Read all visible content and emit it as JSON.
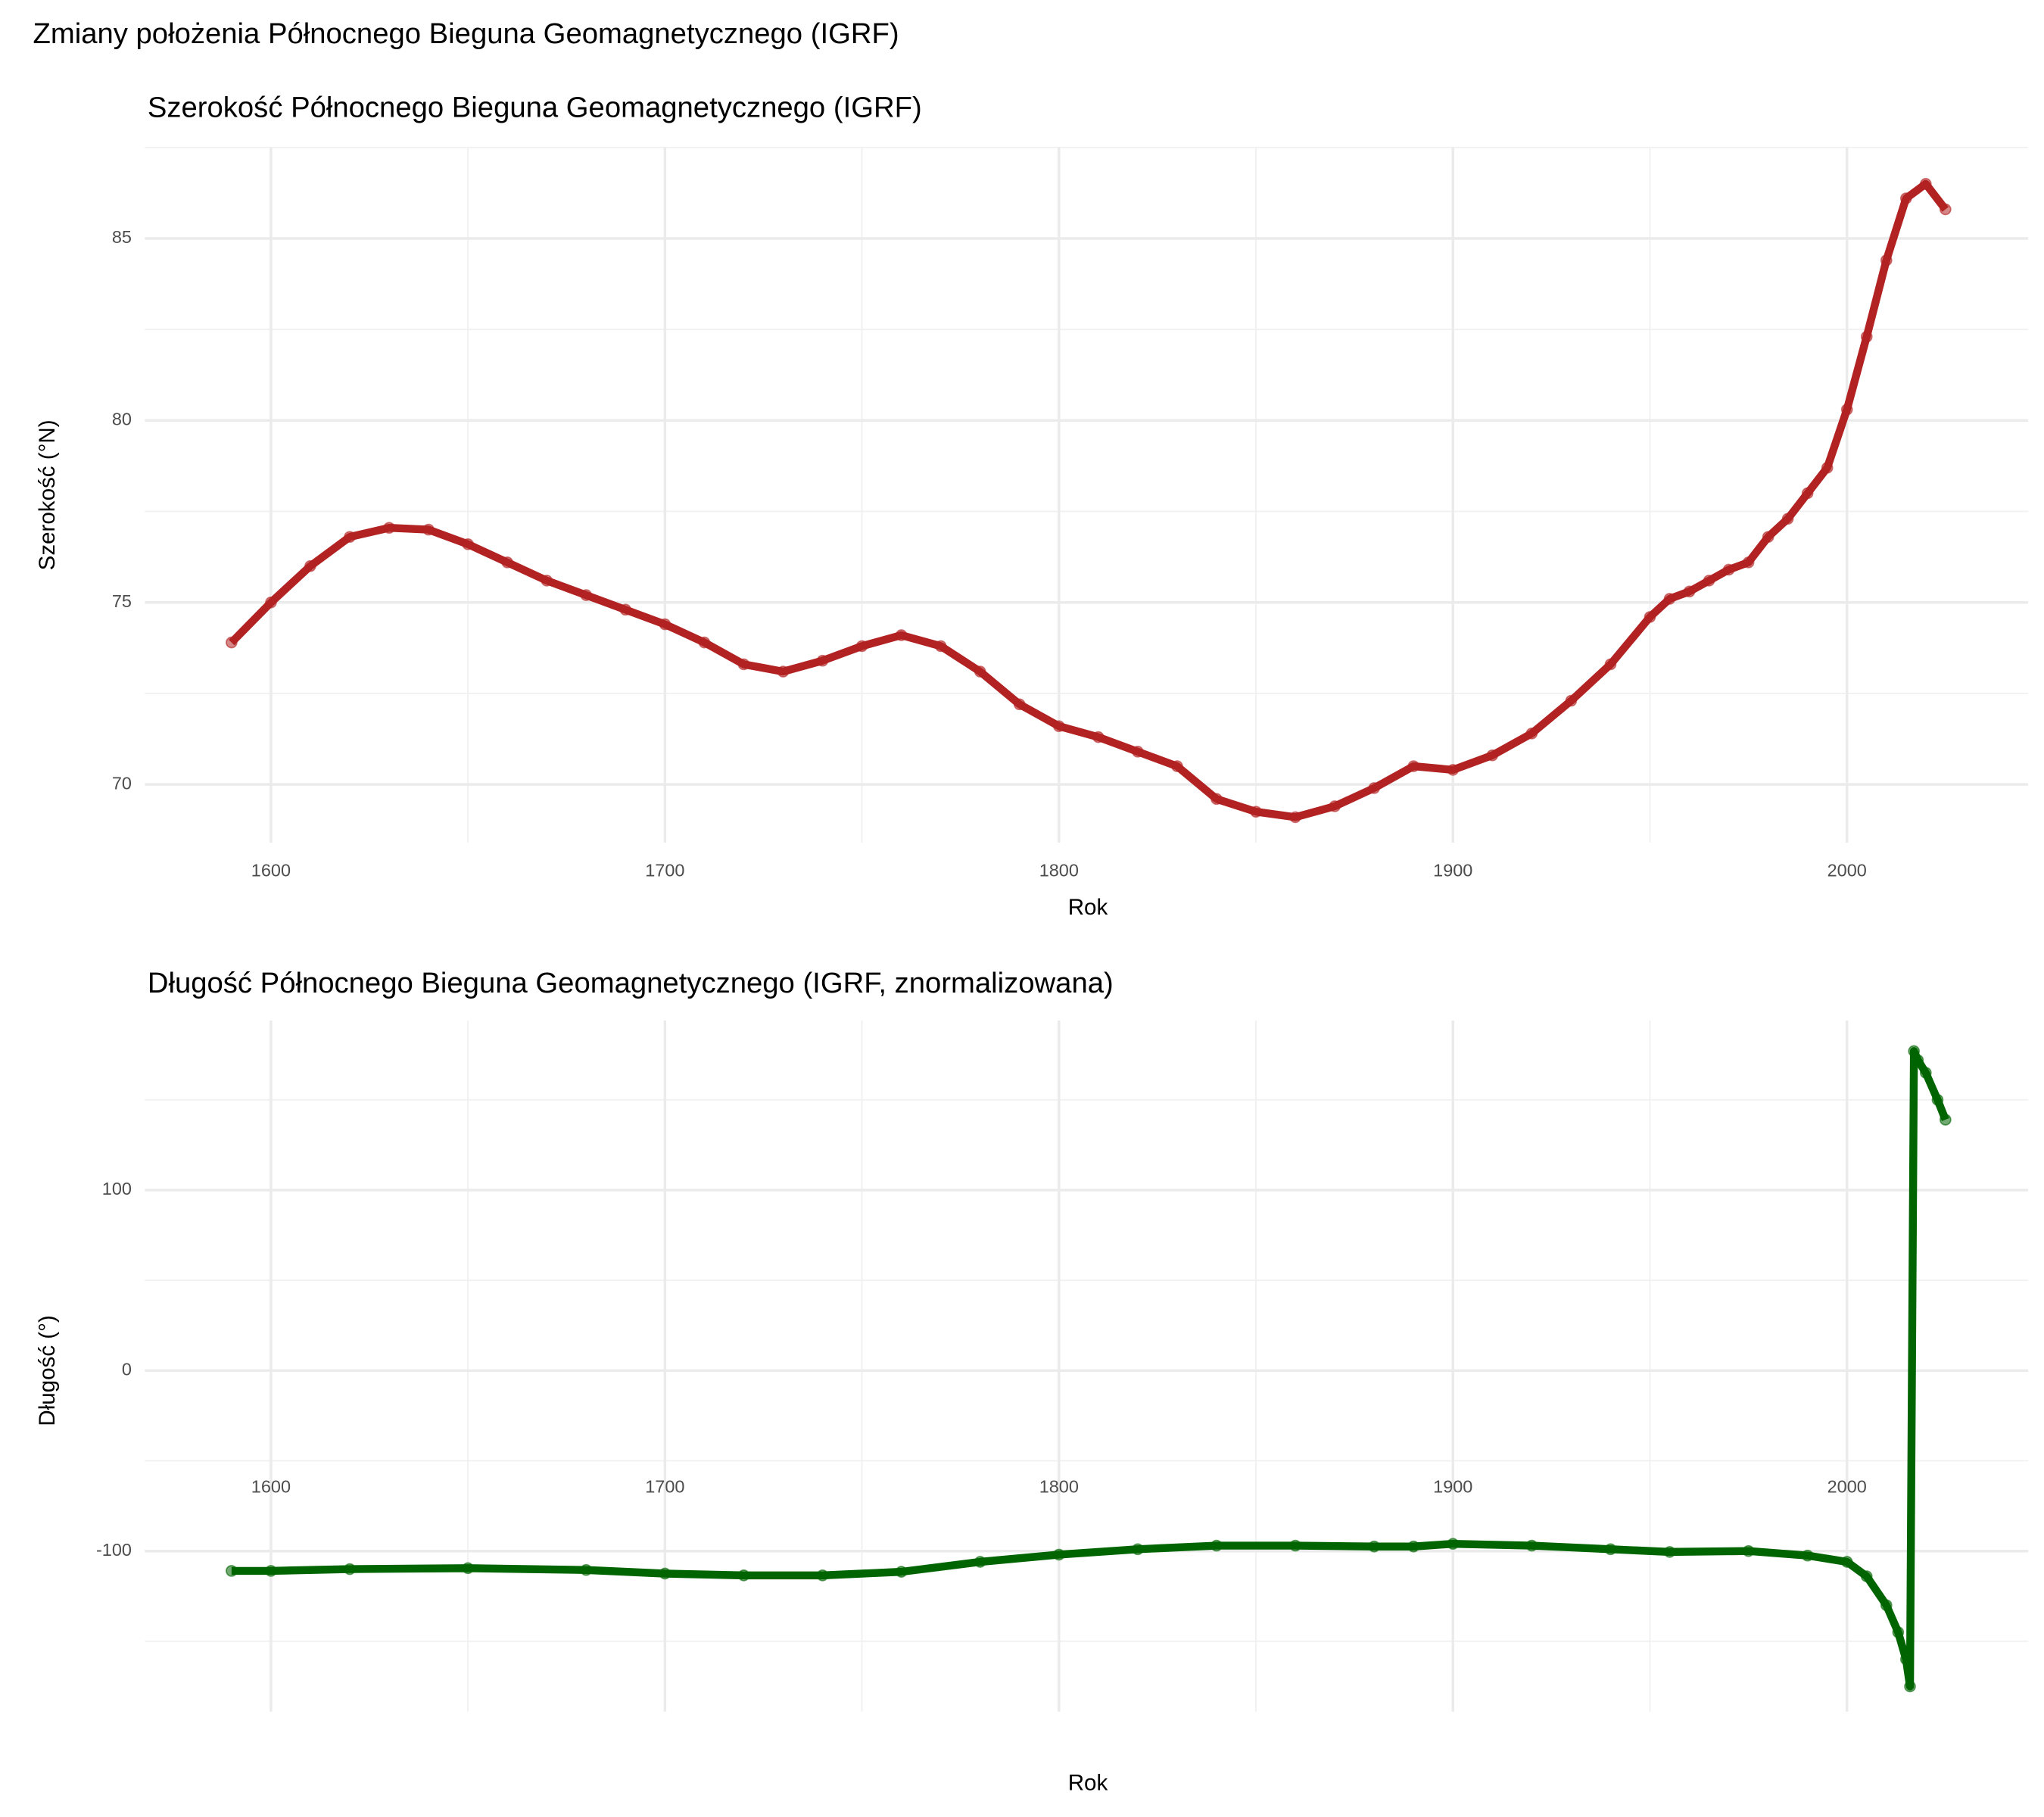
{
  "title": "Zmiany położenia Północnego Bieguna Geomagnetycznego (IGRF)",
  "chart_data": [
    {
      "type": "line",
      "title": "Szerokość Północnego Bieguna Geomagnetycznego (IGRF)",
      "x_label": "Rok",
      "y_label": "Szerokość (°N)",
      "color": "#b22222",
      "x": [
        1590,
        1600,
        1610,
        1620,
        1630,
        1640,
        1650,
        1660,
        1670,
        1680,
        1690,
        1700,
        1710,
        1720,
        1730,
        1740,
        1750,
        1760,
        1770,
        1780,
        1790,
        1800,
        1810,
        1820,
        1830,
        1840,
        1850,
        1860,
        1870,
        1880,
        1890,
        1900,
        1910,
        1920,
        1930,
        1940,
        1950,
        1955,
        1960,
        1965,
        1970,
        1975,
        1980,
        1985,
        1990,
        1995,
        2000,
        2005,
        2010,
        2015,
        2020,
        2025
      ],
      "values": [
        73.9,
        75.0,
        76.0,
        76.8,
        77.05,
        77.0,
        76.6,
        76.1,
        75.6,
        75.2,
        74.8,
        74.4,
        73.9,
        73.3,
        73.1,
        73.4,
        73.8,
        74.1,
        73.8,
        73.1,
        72.2,
        71.6,
        71.3,
        70.9,
        70.5,
        69.6,
        69.25,
        69.1,
        69.4,
        69.9,
        70.5,
        70.4,
        70.8,
        71.4,
        72.3,
        73.3,
        74.6,
        75.1,
        75.3,
        75.6,
        75.9,
        76.1,
        76.8,
        77.3,
        78.0,
        78.7,
        80.3,
        82.3,
        84.4,
        86.1,
        86.5,
        85.8
      ],
      "xlim": [
        1568,
        2046
      ],
      "ylim": [
        68.4,
        87.5
      ],
      "xticks": [
        1600,
        1700,
        1800,
        1900,
        2000
      ],
      "yticks": [
        70,
        75,
        80,
        85
      ],
      "grid": true
    },
    {
      "type": "line",
      "title": "Długość Północnego Bieguna Geomagnetycznego (IGRF, znormalizowana)",
      "x_label": "Rok",
      "y_label": "Długość (°)",
      "color": "#006400",
      "x": [
        1590,
        1600,
        1620,
        1650,
        1680,
        1700,
        1720,
        1740,
        1760,
        1780,
        1800,
        1820,
        1840,
        1860,
        1880,
        1890,
        1900,
        1920,
        1940,
        1955,
        1975,
        1990,
        2000,
        2005,
        2010,
        2013,
        2015,
        2016,
        2017,
        2018,
        2020,
        2023,
        2025
      ],
      "values": [
        -111,
        -111,
        -110,
        -109.5,
        -110.5,
        -112.5,
        -113.5,
        -113.5,
        -111.5,
        -106,
        -102,
        -99,
        -97,
        -97,
        -97.5,
        -97.5,
        -96,
        -97,
        -99,
        -100.5,
        -100,
        -102.5,
        -106,
        -114,
        -130,
        -145,
        -160,
        -175,
        177,
        172,
        165,
        150,
        139
      ],
      "xlim": [
        1568,
        2046
      ],
      "ylim": [
        -189,
        194
      ],
      "xticks": [
        1600,
        1700,
        1800,
        1900,
        2000
      ],
      "yticks": [
        -100,
        0,
        100
      ],
      "grid": true
    }
  ]
}
